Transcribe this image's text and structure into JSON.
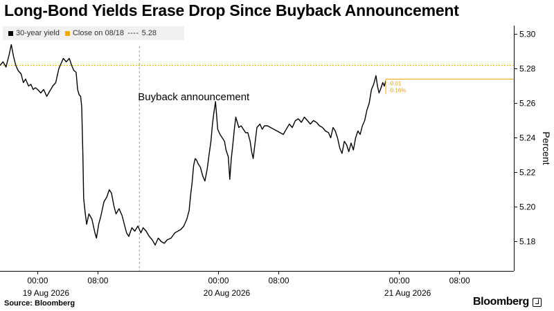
{
  "header": {
    "title": "Long-Bond Yields Erase Drop Since Buyback Announcement"
  },
  "legend": {
    "items": [
      {
        "label": "30-year yield",
        "color": "#000000"
      },
      {
        "label": "Close on 08/18",
        "color": "#f2a900",
        "dash": "----",
        "value": "5.28"
      }
    ]
  },
  "footer": {
    "source": "Source: Bloomberg",
    "brand": "Bloomberg"
  },
  "chart_data": {
    "type": "line",
    "title": "Long-Bond Yields Erase Drop Since Buyback Announcement",
    "xlabel": "",
    "ylabel": "Percent",
    "ylim": [
      5.163,
      5.305
    ],
    "xlim": [
      -5.0,
      63.2
    ],
    "yticks": [
      5.18,
      5.2,
      5.22,
      5.24,
      5.26,
      5.28,
      5.3
    ],
    "ytick_labels": [
      "5.18",
      "5.20",
      "5.22",
      "5.24",
      "5.26",
      "5.28",
      "5.30"
    ],
    "xticks": [
      {
        "x": 0,
        "time": "00:00",
        "date": "19 Aug 2026"
      },
      {
        "x": 8,
        "time": "08:00",
        "date": ""
      },
      {
        "x": 24,
        "time": "00:00",
        "date": "20 Aug 2026"
      },
      {
        "x": 32,
        "time": "08:00",
        "date": ""
      },
      {
        "x": 48,
        "time": "00:00",
        "date": "21 Aug 2026"
      },
      {
        "x": 56,
        "time": "08:00",
        "date": ""
      }
    ],
    "x_units": "hours since 19 Aug 2026 00:00",
    "grid": false,
    "legend_position": "top-left",
    "reference_line": {
      "name": "Close on 08/18",
      "value": 5.282,
      "color": "#f2a900"
    },
    "event_line": {
      "x": 13.5,
      "label": "Buyback announcement"
    },
    "end_annotation": {
      "value": 5.274,
      "change": "-0.01",
      "pct_change": "-0.16%"
    },
    "series": [
      {
        "name": "30-year yield",
        "color": "#000000",
        "points": [
          [
            -5.0,
            5.282
          ],
          [
            -4.6,
            5.284
          ],
          [
            -4.2,
            5.281
          ],
          [
            -3.8,
            5.288
          ],
          [
            -3.5,
            5.294
          ],
          [
            -3.2,
            5.287
          ],
          [
            -2.9,
            5.282
          ],
          [
            -2.6,
            5.279
          ],
          [
            -2.2,
            5.277
          ],
          [
            -1.9,
            5.272
          ],
          [
            -1.6,
            5.274
          ],
          [
            -1.2,
            5.27
          ],
          [
            -0.9,
            5.271
          ],
          [
            -0.6,
            5.268
          ],
          [
            -0.3,
            5.269
          ],
          [
            0.0,
            5.268
          ],
          [
            0.4,
            5.266
          ],
          [
            0.8,
            5.268
          ],
          [
            1.2,
            5.264
          ],
          [
            1.6,
            5.267
          ],
          [
            2.0,
            5.27
          ],
          [
            2.4,
            5.272
          ],
          [
            2.8,
            5.28
          ],
          [
            3.1,
            5.283
          ],
          [
            3.4,
            5.286
          ],
          [
            3.8,
            5.284
          ],
          [
            4.2,
            5.286
          ],
          [
            4.5,
            5.282
          ],
          [
            4.8,
            5.279
          ],
          [
            5.1,
            5.278
          ],
          [
            5.3,
            5.268
          ],
          [
            5.5,
            5.265
          ],
          [
            5.7,
            5.264
          ],
          [
            5.85,
            5.258
          ],
          [
            6.0,
            5.23
          ],
          [
            6.1,
            5.205
          ],
          [
            6.3,
            5.197
          ],
          [
            6.5,
            5.19
          ],
          [
            6.8,
            5.196
          ],
          [
            7.2,
            5.193
          ],
          [
            7.6,
            5.185
          ],
          [
            7.8,
            5.182
          ],
          [
            8.1,
            5.19
          ],
          [
            8.4,
            5.195
          ],
          [
            8.8,
            5.203
          ],
          [
            9.2,
            5.206
          ],
          [
            9.5,
            5.21
          ],
          [
            9.8,
            5.208
          ],
          [
            10.1,
            5.201
          ],
          [
            10.4,
            5.196
          ],
          [
            10.8,
            5.199
          ],
          [
            11.2,
            5.195
          ],
          [
            11.5,
            5.19
          ],
          [
            11.8,
            5.185
          ],
          [
            12.1,
            5.183
          ],
          [
            12.5,
            5.188
          ],
          [
            12.9,
            5.186
          ],
          [
            13.3,
            5.189
          ],
          [
            13.7,
            5.185
          ],
          [
            14.0,
            5.188
          ],
          [
            14.4,
            5.186
          ],
          [
            14.8,
            5.183
          ],
          [
            15.2,
            5.181
          ],
          [
            15.6,
            5.178
          ],
          [
            16.0,
            5.182
          ],
          [
            16.4,
            5.18
          ],
          [
            16.8,
            5.179
          ],
          [
            17.2,
            5.181
          ],
          [
            17.7,
            5.182
          ],
          [
            18.2,
            5.185
          ],
          [
            18.6,
            5.186
          ],
          [
            19.0,
            5.187
          ],
          [
            19.4,
            5.189
          ],
          [
            19.8,
            5.193
          ],
          [
            20.1,
            5.198
          ],
          [
            20.3,
            5.207
          ],
          [
            20.5,
            5.214
          ],
          [
            20.7,
            5.224
          ],
          [
            20.9,
            5.228
          ],
          [
            21.1,
            5.227
          ],
          [
            21.3,
            5.225
          ],
          [
            21.6,
            5.223
          ],
          [
            21.9,
            5.218
          ],
          [
            22.2,
            5.215
          ],
          [
            22.5,
            5.222
          ],
          [
            22.8,
            5.232
          ],
          [
            23.0,
            5.238
          ],
          [
            23.2,
            5.248
          ],
          [
            23.4,
            5.255
          ],
          [
            23.6,
            5.261
          ],
          [
            23.9,
            5.245
          ],
          [
            24.2,
            5.242
          ],
          [
            24.5,
            5.24
          ],
          [
            24.8,
            5.238
          ],
          [
            25.0,
            5.233
          ],
          [
            25.3,
            5.229
          ],
          [
            25.5,
            5.216
          ],
          [
            25.7,
            5.228
          ],
          [
            25.9,
            5.236
          ],
          [
            26.1,
            5.245
          ],
          [
            26.3,
            5.252
          ],
          [
            26.5,
            5.249
          ],
          [
            26.7,
            5.246
          ],
          [
            27.0,
            5.247
          ],
          [
            27.3,
            5.245
          ],
          [
            27.6,
            5.243
          ],
          [
            27.9,
            5.243
          ],
          [
            28.2,
            5.238
          ],
          [
            28.4,
            5.232
          ],
          [
            28.6,
            5.228
          ],
          [
            28.8,
            5.235
          ],
          [
            29.1,
            5.246
          ],
          [
            29.5,
            5.248
          ],
          [
            29.8,
            5.245
          ],
          [
            30.1,
            5.247
          ],
          [
            30.5,
            5.247
          ],
          [
            32.6,
            5.242
          ],
          [
            33.0,
            5.245
          ],
          [
            33.4,
            5.248
          ],
          [
            33.8,
            5.246
          ],
          [
            34.2,
            5.25
          ],
          [
            34.6,
            5.251
          ],
          [
            35.0,
            5.249
          ],
          [
            35.4,
            5.252
          ],
          [
            35.8,
            5.25
          ],
          [
            36.2,
            5.248
          ],
          [
            36.6,
            5.25
          ],
          [
            37.0,
            5.249
          ],
          [
            37.4,
            5.247
          ],
          [
            37.8,
            5.246
          ],
          [
            38.2,
            5.244
          ],
          [
            38.6,
            5.243
          ],
          [
            38.9,
            5.24
          ],
          [
            39.2,
            5.246
          ],
          [
            39.5,
            5.244
          ],
          [
            39.8,
            5.24
          ],
          [
            40.1,
            5.234
          ],
          [
            40.4,
            5.231
          ],
          [
            40.7,
            5.238
          ],
          [
            41.0,
            5.236
          ],
          [
            41.3,
            5.232
          ],
          [
            41.6,
            5.237
          ],
          [
            41.9,
            5.233
          ],
          [
            42.2,
            5.24
          ],
          [
            42.5,
            5.244
          ],
          [
            42.8,
            5.242
          ],
          [
            43.1,
            5.247
          ],
          [
            43.4,
            5.25
          ],
          [
            43.7,
            5.256
          ],
          [
            44.0,
            5.26
          ],
          [
            44.3,
            5.268
          ],
          [
            44.6,
            5.271
          ],
          [
            44.9,
            5.276
          ],
          [
            45.1,
            5.27
          ],
          [
            45.3,
            5.266
          ],
          [
            45.5,
            5.268
          ],
          [
            45.8,
            5.272
          ],
          [
            46.0,
            5.27
          ],
          [
            46.2,
            5.273
          ]
        ]
      }
    ]
  }
}
